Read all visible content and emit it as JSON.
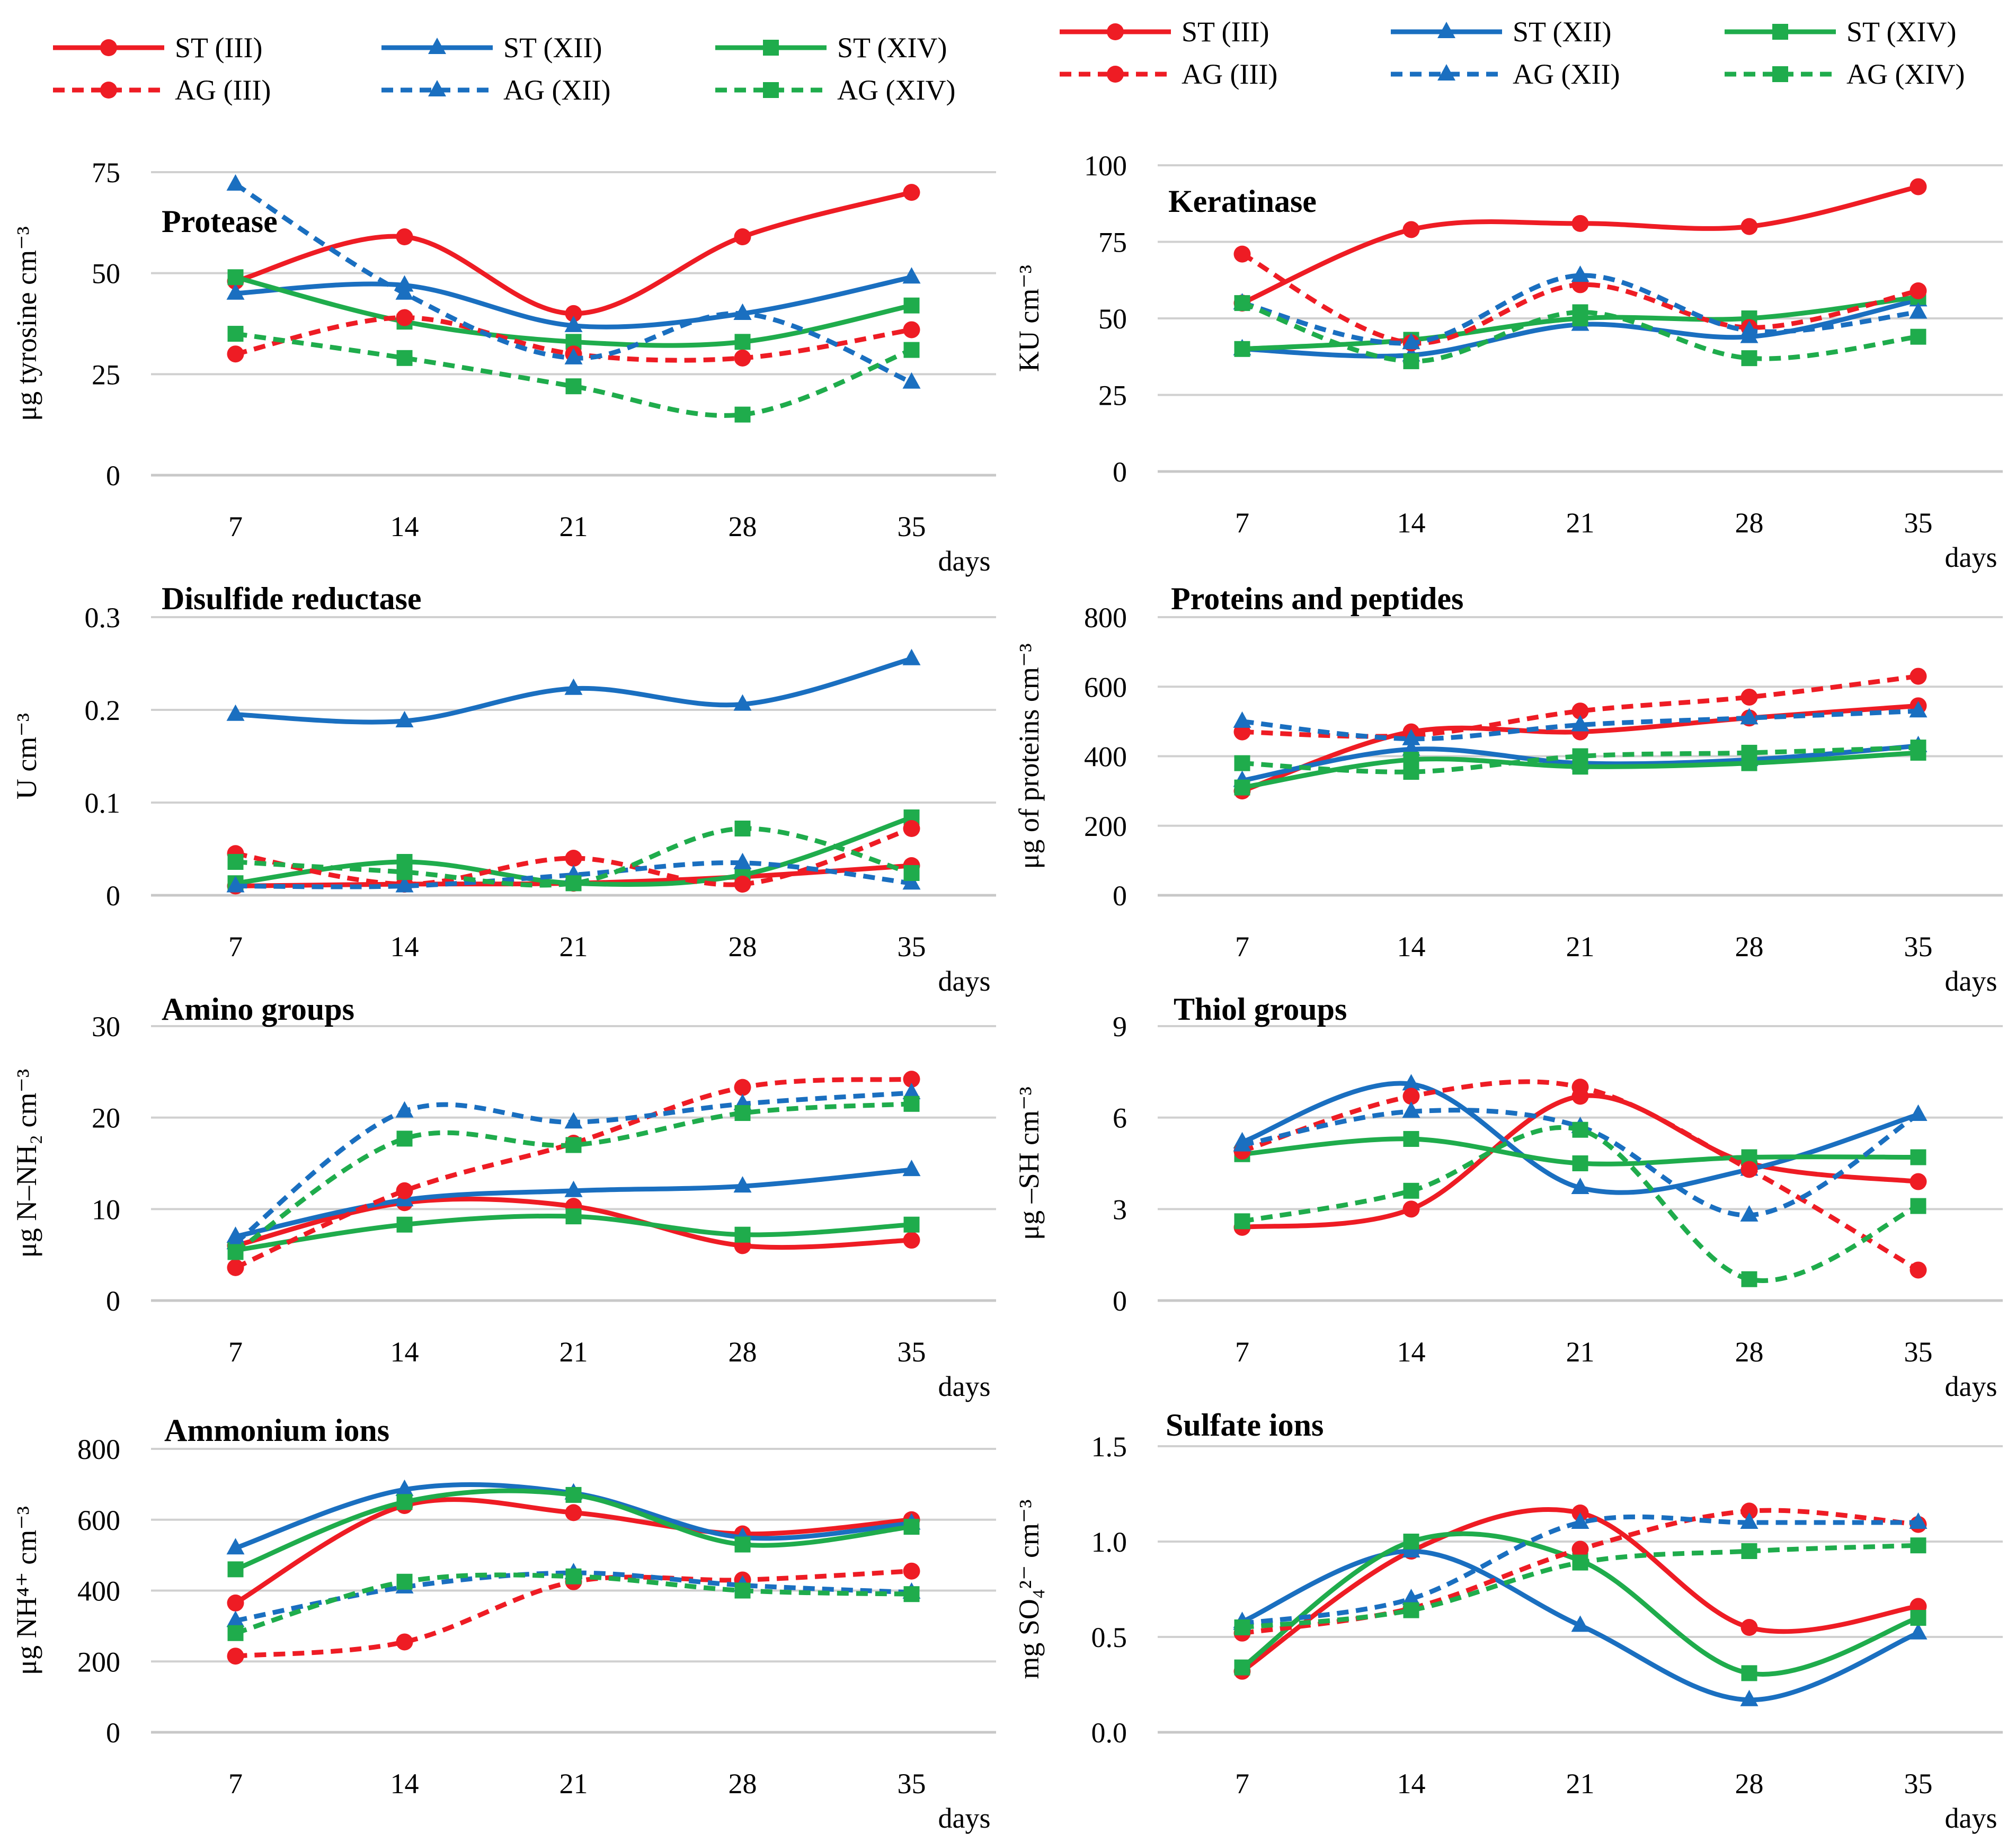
{
  "legend_items": [
    {
      "label": "ST (III)",
      "color": "#ee1c24",
      "dash": false,
      "marker": "circle"
    },
    {
      "label": "ST (XII)",
      "color": "#1a6fc0",
      "dash": false,
      "marker": "triangle"
    },
    {
      "label": "ST (XIV)",
      "color": "#1fac4c",
      "dash": false,
      "marker": "square"
    },
    {
      "label": "AG (III)",
      "color": "#ee1c24",
      "dash": true,
      "marker": "circle"
    },
    {
      "label": "AG (XII)",
      "color": "#1a6fc0",
      "dash": true,
      "marker": "triangle"
    },
    {
      "label": "AG (XIV)",
      "color": "#1fac4c",
      "dash": true,
      "marker": "square"
    }
  ],
  "chart_data": [
    {
      "type": "line",
      "title": "Protease",
      "ylabel": "μg tyrosine cm⁻³",
      "xlabel": "days",
      "categories": [
        "7",
        "14",
        "21",
        "28",
        "35"
      ],
      "ylim": [
        0,
        75
      ],
      "yticks": [
        "0",
        "25",
        "50",
        "75"
      ],
      "series": [
        {
          "name": "ST (III)",
          "values": [
            48,
            59,
            40,
            59,
            70
          ]
        },
        {
          "name": "ST (XII)",
          "values": [
            45,
            47,
            37,
            40,
            49
          ]
        },
        {
          "name": "ST (XIV)",
          "values": [
            49,
            38,
            33,
            33,
            42
          ]
        },
        {
          "name": "AG (III)",
          "values": [
            30,
            39,
            30,
            29,
            36
          ]
        },
        {
          "name": "AG (XII)",
          "values": [
            72,
            45,
            29,
            40,
            23
          ]
        },
        {
          "name": "AG (XIV)",
          "values": [
            35,
            29,
            22,
            15,
            31
          ]
        }
      ]
    },
    {
      "type": "line",
      "title": "Keratinase",
      "ylabel": "KU cm⁻³",
      "xlabel": "days",
      "categories": [
        "7",
        "14",
        "21",
        "28",
        "35"
      ],
      "ylim": [
        0,
        100
      ],
      "yticks": [
        "0",
        "25",
        "50",
        "75",
        "100"
      ],
      "series": [
        {
          "name": "ST (III)",
          "values": [
            55,
            79,
            81,
            80,
            93
          ]
        },
        {
          "name": "ST (XII)",
          "values": [
            40,
            38,
            48,
            44,
            56
          ]
        },
        {
          "name": "ST (XIV)",
          "values": [
            40,
            43,
            50,
            50,
            57
          ]
        },
        {
          "name": "AG (III)",
          "values": [
            71,
            42,
            61,
            47,
            59
          ]
        },
        {
          "name": "AG (XII)",
          "values": [
            55,
            42,
            64,
            46,
            52
          ]
        },
        {
          "name": "AG (XIV)",
          "values": [
            55,
            36,
            52,
            37,
            44
          ]
        }
      ]
    },
    {
      "type": "line",
      "title": "Disulfide reductase",
      "ylabel": "U cm⁻³",
      "xlabel": "days",
      "categories": [
        "7",
        "14",
        "21",
        "28",
        "35"
      ],
      "ylim": [
        0,
        0.3
      ],
      "yticks": [
        "0",
        "0.1",
        "0.2",
        "0.3"
      ],
      "series": [
        {
          "name": "ST (III)",
          "values": [
            0.01,
            0.012,
            0.013,
            0.02,
            0.032
          ]
        },
        {
          "name": "ST (XII)",
          "values": [
            0.195,
            0.188,
            0.223,
            0.206,
            0.255
          ]
        },
        {
          "name": "ST (XIV)",
          "values": [
            0.013,
            0.036,
            0.013,
            0.022,
            0.084
          ]
        },
        {
          "name": "AG (III)",
          "values": [
            0.045,
            0.012,
            0.04,
            0.012,
            0.072
          ]
        },
        {
          "name": "AG (XII)",
          "values": [
            0.01,
            0.01,
            0.022,
            0.035,
            0.013
          ]
        },
        {
          "name": "AG (XIV)",
          "values": [
            0.036,
            0.025,
            0.013,
            0.072,
            0.024
          ]
        }
      ]
    },
    {
      "type": "line",
      "title": "Proteins and peptides",
      "ylabel": "μg of proteins cm⁻³",
      "xlabel": "days",
      "categories": [
        "7",
        "14",
        "21",
        "28",
        "35"
      ],
      "ylim": [
        0,
        800
      ],
      "yticks": [
        "0",
        "200",
        "400",
        "600",
        "800"
      ],
      "series": [
        {
          "name": "ST (III)",
          "values": [
            300,
            470,
            470,
            510,
            545
          ]
        },
        {
          "name": "ST (XII)",
          "values": [
            330,
            420,
            380,
            390,
            430
          ]
        },
        {
          "name": "ST (XIV)",
          "values": [
            310,
            390,
            370,
            380,
            410
          ]
        },
        {
          "name": "AG (III)",
          "values": [
            470,
            460,
            530,
            570,
            630
          ]
        },
        {
          "name": "AG (XII)",
          "values": [
            500,
            450,
            490,
            510,
            530
          ]
        },
        {
          "name": "AG (XIV)",
          "values": [
            380,
            355,
            400,
            410,
            425
          ]
        }
      ]
    },
    {
      "type": "line",
      "title": "Amino groups",
      "ylabel": "μg N–NH₂ cm⁻³",
      "xlabel": "days",
      "categories": [
        "7",
        "14",
        "21",
        "28",
        "35"
      ],
      "ylim": [
        0,
        30
      ],
      "yticks": [
        "0",
        "10",
        "20",
        "30"
      ],
      "series": [
        {
          "name": "ST (III)",
          "values": [
            6,
            10.7,
            10.3,
            6,
            6.6
          ]
        },
        {
          "name": "ST (XII)",
          "values": [
            7,
            11,
            12,
            12.5,
            14.3
          ]
        },
        {
          "name": "ST (XIV)",
          "values": [
            5.5,
            8.3,
            9.2,
            7.2,
            8.3
          ]
        },
        {
          "name": "AG (III)",
          "values": [
            3.6,
            12,
            17.2,
            23.3,
            24.2
          ]
        },
        {
          "name": "AG (XII)",
          "values": [
            6.3,
            20.7,
            19.5,
            21.5,
            22.7
          ]
        },
        {
          "name": "AG (XIV)",
          "values": [
            5.3,
            17.7,
            17,
            20.5,
            21.5
          ]
        }
      ]
    },
    {
      "type": "line",
      "title": "Thiol groups",
      "ylabel": "μg –SH cm⁻³",
      "xlabel": "days",
      "categories": [
        "7",
        "14",
        "21",
        "28",
        "35"
      ],
      "ylim": [
        0,
        9
      ],
      "yticks": [
        "0",
        "3",
        "6",
        "9"
      ],
      "series": [
        {
          "name": "ST (III)",
          "values": [
            2.4,
            3.0,
            6.7,
            4.5,
            3.9
          ]
        },
        {
          "name": "ST (XII)",
          "values": [
            5.2,
            7.1,
            3.7,
            4.3,
            6.1
          ]
        },
        {
          "name": "ST (XIV)",
          "values": [
            4.8,
            5.3,
            4.5,
            4.7,
            4.7
          ]
        },
        {
          "name": "AG (III)",
          "values": [
            4.9,
            6.7,
            7.0,
            4.3,
            1.0
          ]
        },
        {
          "name": "AG (XII)",
          "values": [
            5.1,
            6.2,
            5.7,
            2.8,
            6.1
          ]
        },
        {
          "name": "AG (XIV)",
          "values": [
            2.6,
            3.6,
            5.6,
            0.7,
            3.1
          ]
        }
      ]
    },
    {
      "type": "line",
      "title": "Ammonium ions",
      "ylabel": "μg NH⁴⁺ cm⁻³",
      "xlabel": "days",
      "categories": [
        "7",
        "14",
        "21",
        "28",
        "35"
      ],
      "ylim": [
        0,
        800
      ],
      "yticks": [
        "0",
        "200",
        "400",
        "600",
        "800"
      ],
      "series": [
        {
          "name": "ST (III)",
          "values": [
            365,
            640,
            620,
            560,
            600
          ]
        },
        {
          "name": "ST (XII)",
          "values": [
            520,
            685,
            675,
            550,
            590
          ]
        },
        {
          "name": "ST (XIV)",
          "values": [
            460,
            650,
            670,
            530,
            580
          ]
        },
        {
          "name": "AG (III)",
          "values": [
            215,
            255,
            425,
            430,
            455
          ]
        },
        {
          "name": "AG (XII)",
          "values": [
            315,
            410,
            450,
            415,
            395
          ]
        },
        {
          "name": "AG (XIV)",
          "values": [
            280,
            425,
            440,
            400,
            390
          ]
        }
      ]
    },
    {
      "type": "line",
      "title": "Sulfate ions",
      "ylabel": "mg SO₄²⁻ cm⁻³",
      "xlabel": "days",
      "categories": [
        "7",
        "14",
        "21",
        "28",
        "35"
      ],
      "ylim": [
        0,
        1.5
      ],
      "yticks": [
        "0.0",
        "0.5",
        "1.0",
        "1.5"
      ],
      "series": [
        {
          "name": "ST (III)",
          "values": [
            0.32,
            0.95,
            1.15,
            0.55,
            0.66
          ]
        },
        {
          "name": "ST (XII)",
          "values": [
            0.58,
            0.95,
            0.56,
            0.17,
            0.52
          ]
        },
        {
          "name": "ST (XIV)",
          "values": [
            0.34,
            1.0,
            0.9,
            0.31,
            0.6
          ]
        },
        {
          "name": "AG (III)",
          "values": [
            0.52,
            0.65,
            0.96,
            1.16,
            1.09
          ]
        },
        {
          "name": "AG (XII)",
          "values": [
            0.57,
            0.7,
            1.1,
            1.1,
            1.1
          ]
        },
        {
          "name": "AG (XIV)",
          "values": [
            0.55,
            0.64,
            0.89,
            0.95,
            0.98
          ]
        }
      ]
    }
  ]
}
